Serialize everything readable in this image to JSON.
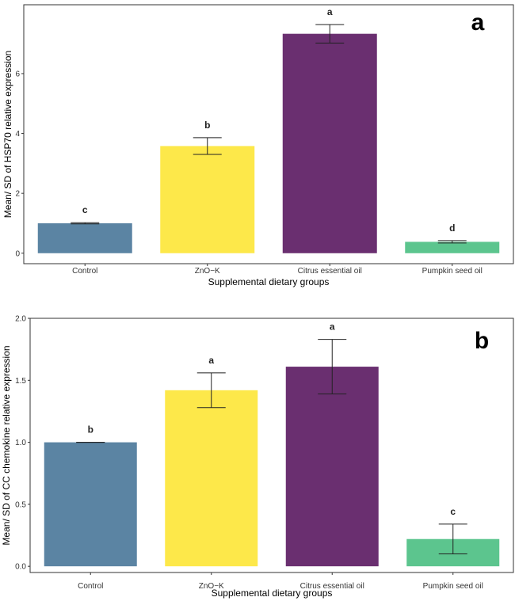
{
  "chart_data": [
    {
      "type": "bar",
      "panel_label": "a",
      "categories": [
        "Control",
        "ZnO−K",
        "Citrus essential oil",
        "Pumpkin seed oil"
      ],
      "values": [
        1.0,
        3.58,
        7.33,
        0.38
      ],
      "error_bars": [
        0.02,
        0.28,
        0.31,
        0.04
      ],
      "significance": [
        "c",
        "b",
        "a",
        "d"
      ],
      "colors": [
        "#5b84a3",
        "#fde84a",
        "#6a2f70",
        "#5cc58e"
      ],
      "title": "",
      "xlabel": "Supplemental dietary groups",
      "ylabel": "Mean/ SD of HSP70 relative expression",
      "ylim": [
        -0.35,
        8.3
      ],
      "yticks": [
        0,
        2,
        4,
        6
      ],
      "ytick_labels": [
        "0",
        "2",
        "4",
        "6"
      ],
      "grid": false,
      "legend": "none"
    },
    {
      "type": "bar",
      "panel_label": "b",
      "categories": [
        "Control",
        "ZnO−K",
        "Citrus essential oil",
        "Pumpkin seed oil"
      ],
      "values": [
        1.0,
        1.42,
        1.61,
        0.22
      ],
      "error_bars": [
        0.0,
        0.14,
        0.22,
        0.12
      ],
      "significance": [
        "b",
        "a",
        "a",
        "c"
      ],
      "colors": [
        "#5b84a3",
        "#fde84a",
        "#6a2f70",
        "#5cc58e"
      ],
      "title": "",
      "xlabel": "Supplemental dietary groups",
      "ylabel": "Mean/ SD of CC chemokine relative expression",
      "ylim": [
        -0.05,
        2.0
      ],
      "yticks": [
        0.0,
        0.5,
        1.0,
        1.5,
        2.0
      ],
      "ytick_labels": [
        "0.0",
        "0.5",
        "1.0",
        "1.5",
        "2.0"
      ],
      "grid": false,
      "legend": "none"
    }
  ]
}
